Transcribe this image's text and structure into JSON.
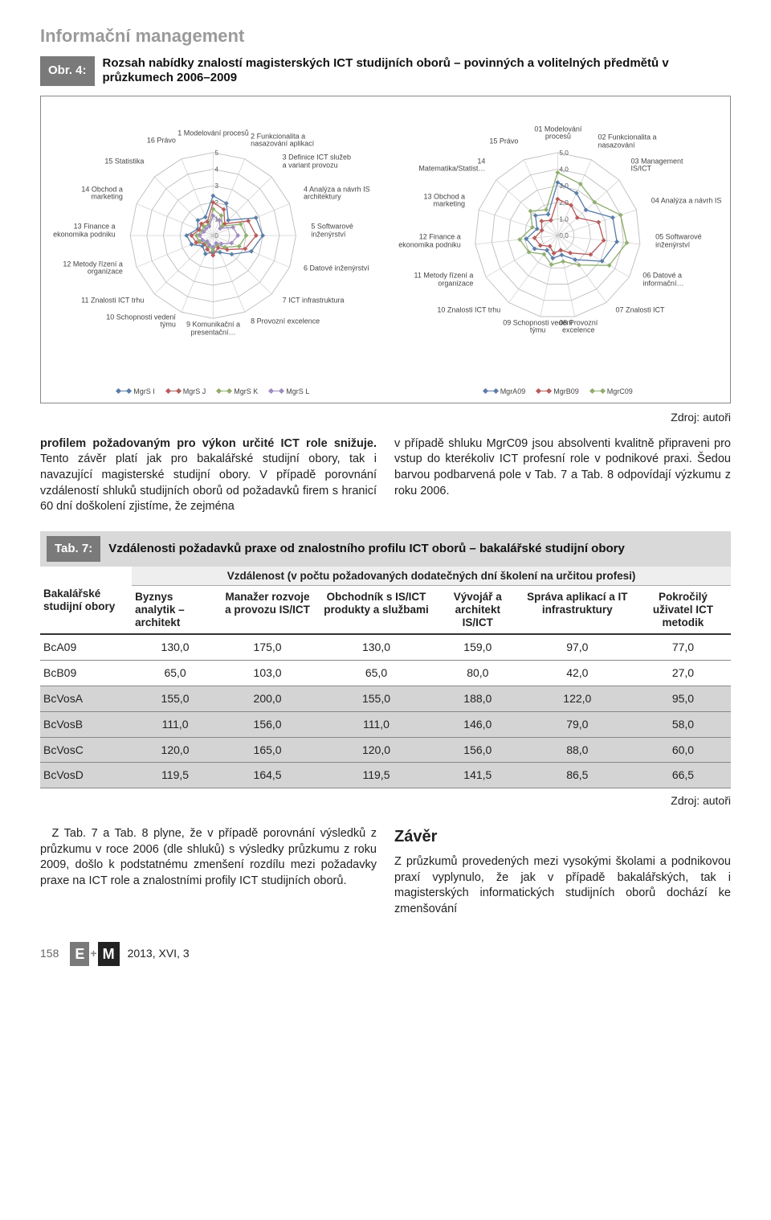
{
  "section_header": "Informační management",
  "figure": {
    "label": "Obr. 4:",
    "caption": "Rozsah nabídky znalostí magisterských ICT studijních oborů – povinných a volitelných předmětů v průzkumech 2006–2009"
  },
  "radar_left": {
    "type": "radar",
    "rings": [
      1,
      2,
      3,
      4,
      5
    ],
    "ring_color": "#b8b8b8",
    "grid_color": "#c8c8c8",
    "axes": [
      {
        "label": "1 Modelování procesů"
      },
      {
        "label": "2 Funkcionalita a nasazování aplikací"
      },
      {
        "label": "3 Definice ICT služeb a variant provozu"
      },
      {
        "label": "4 Analýza a návrh IS architektury"
      },
      {
        "label": "5 Softwarové inženýrství"
      },
      {
        "label": "6 Datové inženýrství"
      },
      {
        "label": "7 ICT infrastruktura"
      },
      {
        "label": "8 Provozní excelence"
      },
      {
        "label": "9 Komunikační a presentační…"
      },
      {
        "label": "10 Schopnosti vedení týmu"
      },
      {
        "label": "11 Znalosti ICT trhu"
      },
      {
        "label": "12 Metody řízení a organizace"
      },
      {
        "label": "13 Finance a ekonomika podniku"
      },
      {
        "label": "14 Obchod a marketing"
      },
      {
        "label": "15 Statistika"
      },
      {
        "label": "16 Právo"
      }
    ],
    "series": [
      {
        "name": "MgrS I",
        "color": "#5b7ea8",
        "values": [
          2.4,
          2.1,
          1.3,
          2.8,
          3.0,
          2.5,
          1.6,
          1.1,
          1.0,
          1.2,
          0.9,
          1.4,
          1.6,
          1.0,
          1.3,
          1.2
        ]
      },
      {
        "name": "MgrS J",
        "color": "#b85c5c",
        "values": [
          2.0,
          1.7,
          1.0,
          2.3,
          2.6,
          2.1,
          1.2,
          0.8,
          1.2,
          0.9,
          0.7,
          1.1,
          1.3,
          0.9,
          1.0,
          0.9
        ]
      },
      {
        "name": "MgrS K",
        "color": "#8fae6e",
        "values": [
          1.6,
          1.3,
          0.8,
          1.8,
          2.0,
          1.7,
          1.0,
          0.6,
          0.9,
          0.7,
          0.6,
          0.9,
          1.0,
          0.7,
          0.8,
          0.7
        ]
      },
      {
        "name": "MgrS L",
        "color": "#a08cc0",
        "values": [
          1.2,
          1.0,
          0.6,
          1.3,
          1.5,
          1.2,
          0.7,
          0.5,
          0.7,
          0.6,
          0.5,
          0.7,
          0.8,
          0.6,
          0.6,
          0.6
        ]
      }
    ],
    "legend_prefix": "",
    "max": 5
  },
  "radar_right": {
    "type": "radar",
    "rings": [
      1,
      2,
      3,
      4,
      5
    ],
    "ring_labels": [
      "1,0",
      "2,0",
      "3,0",
      "4,0",
      "5,0"
    ],
    "ring_color": "#b8b8b8",
    "grid_color": "#c8c8c8",
    "axes": [
      {
        "label": "01 Modelování procesů"
      },
      {
        "label": "02 Funkcionalita a nasazování"
      },
      {
        "label": "03 Management IS/ICT"
      },
      {
        "label": "04 Analýza a návrh IS"
      },
      {
        "label": "05 Softwarové inženýrství"
      },
      {
        "label": "06 Datové a informační…"
      },
      {
        "label": "07 Znalosti ICT"
      },
      {
        "label": "08 Provozní excelence"
      },
      {
        "label": "09 Schopnosti vedení týmu"
      },
      {
        "label": "10 Znalosti ICT trhu"
      },
      {
        "label": "11 Metody řízení a organizace"
      },
      {
        "label": "12 Finance a ekonomika podniku"
      },
      {
        "label": "13 Obchod a marketing"
      },
      {
        "label": "14 Matematika/Statist…"
      },
      {
        "label": "15 Právo"
      }
    ],
    "series": [
      {
        "name": "MgrA09",
        "color": "#5b7ea8",
        "values": [
          3.2,
          2.8,
          2.3,
          3.5,
          3.6,
          3.1,
          1.8,
          1.2,
          1.4,
          1.1,
          1.6,
          1.9,
          1.3,
          1.8,
          1.4
        ]
      },
      {
        "name": "MgrB09",
        "color": "#b85c5c",
        "values": [
          2.2,
          2.0,
          1.6,
          2.6,
          2.8,
          2.3,
          1.3,
          0.9,
          1.1,
          0.8,
          1.2,
          1.4,
          1.0,
          1.3,
          1.0
        ]
      },
      {
        "name": "MgrC09",
        "color": "#8fae6e",
        "values": [
          3.8,
          3.4,
          3.0,
          4.0,
          4.2,
          3.6,
          2.2,
          1.6,
          1.8,
          1.4,
          2.0,
          2.3,
          1.6,
          2.2,
          1.7
        ]
      }
    ],
    "max": 5
  },
  "source_text": "Zdroj: autoři",
  "body_left": "profilem požadovaným pro výkon určité ICT role snižuje. Tento závěr platí jak pro bakalářské studijní obory, tak i navazující magisterské studijní obory. V případě porovnání vzdáleností shluků studijních oborů od požadavků firem s hranicí 60 dní doškolení zjistíme, že zejména",
  "body_left_boldlead": "profilem požadovaným pro výkon určité ICT role snižuje.",
  "body_right": "v případě shluku MgrC09 jsou absolventi kvalitně připraveni pro vstup do kterékoliv ICT profesní role v podnikové praxi. Šedou barvou podbarvená pole v Tab. 7 a Tab. 8 odpovídají výzkumu z roku 2006.",
  "table7": {
    "label": "Tab. 7:",
    "caption": "Vzdálenosti požadavků praxe od znalostního profilu ICT oborů – bakalářské studijní obory",
    "subhead": "Vzdálenost (v počtu požadovaných dodatečných dní školení na určitou profesi)",
    "row_header": "Bakalářské studijní obory",
    "columns": [
      "Byznys analytik – architekt",
      "Manažer rozvoje a provozu IS/ICT",
      "Obchodník s IS/ICT produkty a službami",
      "Vývojář a architekt IS/ICT",
      "Správa aplikací a IT infrastruktury",
      "Pokročilý uživatel ICT metodik"
    ],
    "rows": [
      {
        "name": "BcA09",
        "vals": [
          "130,0",
          "175,0",
          "130,0",
          "159,0",
          "97,0",
          "77,0"
        ],
        "hl": false
      },
      {
        "name": "BcB09",
        "vals": [
          "65,0",
          "103,0",
          "65,0",
          "80,0",
          "42,0",
          "27,0"
        ],
        "hl": false
      },
      {
        "name": "BcVosA",
        "vals": [
          "155,0",
          "200,0",
          "155,0",
          "188,0",
          "122,0",
          "95,0"
        ],
        "hl": true
      },
      {
        "name": "BcVosB",
        "vals": [
          "111,0",
          "156,0",
          "111,0",
          "146,0",
          "79,0",
          "58,0"
        ],
        "hl": true
      },
      {
        "name": "BcVosC",
        "vals": [
          "120,0",
          "165,0",
          "120,0",
          "156,0",
          "88,0",
          "60,0"
        ],
        "hl": true
      },
      {
        "name": "BcVosD",
        "vals": [
          "119,5",
          "164,5",
          "119,5",
          "141,5",
          "86,5",
          "66,5"
        ],
        "hl": true
      }
    ]
  },
  "conclusion_heading": "Závěr",
  "conclusion_left": "Z Tab. 7 a Tab. 8 plyne, že v případě porovnání výsledků z průzkumu v roce 2006 (dle shluků) s výsledky průzkumu z roku 2009, došlo k podstatnému zmenšení rozdílu mezi požadavky praxe na ICT role a znalostními profily ICT studijních oborů.",
  "conclusion_right": "Z průzkumů provedených mezi vysokými školami a podnikovou praxí vyplynulo, že jak v případě bakalářských, tak i magisterských informatických studijních oborů dochází ke zmenšování",
  "footer": {
    "page": "158",
    "issue": "2013, XVI, 3"
  }
}
